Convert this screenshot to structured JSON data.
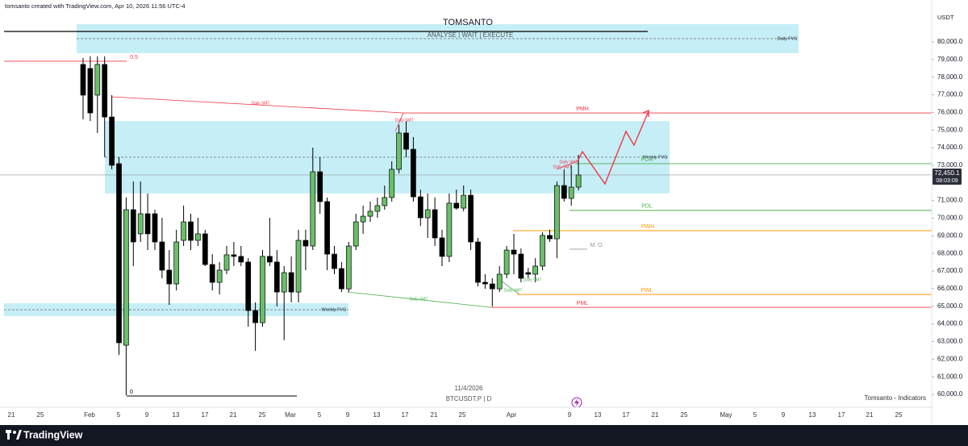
{
  "header": {
    "author_line": "tomsanto created with TradingView.com, Apr 10, 2026 11:56 UTC-4"
  },
  "chart_data": {
    "type": "candlestick",
    "title": "TOMSANTO",
    "subtitle": "ANALYSE | WAIT | EXECUTE",
    "date": "11/4/2026",
    "symbol": "BTCUSDT.P | D",
    "watermark": "Tomsanto - Indicators",
    "currency": "USDT",
    "up_color": "#6abf69",
    "down_color": "#000000",
    "ylim": [
      59270,
      81690
    ],
    "yticks": [
      {
        "value": 60000,
        "label": "60,000.0"
      },
      {
        "value": 61000,
        "label": "61,000.0"
      },
      {
        "value": 62000,
        "label": "62,000.0"
      },
      {
        "value": 63000,
        "label": "63,000.0"
      },
      {
        "value": 64000,
        "label": "64,000.0"
      },
      {
        "value": 65000,
        "label": "65,000.0"
      },
      {
        "value": 66000,
        "label": "66,000.0"
      },
      {
        "value": 67000,
        "label": "67,000.0"
      },
      {
        "value": 68000,
        "label": "68,000.0"
      },
      {
        "value": 69000,
        "label": "69,000.0"
      },
      {
        "value": 70000,
        "label": "70,000.0"
      },
      {
        "value": 71000,
        "label": "71,000.0"
      },
      {
        "value": 73000,
        "label": "73,000.0"
      },
      {
        "value": 74000,
        "label": "74,000.0"
      },
      {
        "value": 75000,
        "label": "75,000.0"
      },
      {
        "value": 76000,
        "label": "76,000.0"
      },
      {
        "value": 77000,
        "label": "77,000.0"
      },
      {
        "value": 78000,
        "label": "78,000.0"
      },
      {
        "value": 79000,
        "label": "79,000.0"
      },
      {
        "value": 80000,
        "label": "80,000.0"
      }
    ],
    "xticks": [
      "21",
      "25",
      "Feb",
      "5",
      "9",
      "13",
      "17",
      "21",
      "25",
      "Mar",
      "5",
      "9",
      "13",
      "17",
      "21",
      "25",
      "Apr",
      "9",
      "13",
      "17",
      "21",
      "25",
      "May",
      "5",
      "9",
      "13",
      "17",
      "21",
      "25"
    ],
    "last_price": {
      "value": 72450.1,
      "label": "72,450.1"
    },
    "countdown": "08:03:09",
    "open": [
      78720,
      78490,
      76980,
      78720,
      75740,
      73090,
      62790,
      70480,
      69110,
      70250,
      70250,
      68650,
      67050,
      66270,
      68740,
      69790,
      68740,
      69110,
      67370,
      66360,
      67050,
      67920,
      67830,
      67510,
      64760,
      64070,
      67830,
      67510,
      65810,
      66910,
      65810,
      68740,
      68420,
      72630,
      70940,
      67960,
      67140,
      65990,
      68420,
      69790,
      70110,
      70390,
      70710,
      71170,
      72770,
      74830,
      73910,
      71210,
      70020,
      70480,
      68880,
      67830,
      70850,
      70570,
      71300,
      68650,
      66360,
      66270,
      65990,
      66820,
      68190,
      67960,
      66910,
      66820,
      67280,
      69020,
      68830,
      71850,
      71120,
      71760
    ],
    "high": [
      79090,
      79180,
      79180,
      79180,
      76980,
      73460,
      71170,
      72080,
      72080,
      71400,
      70480,
      70020,
      68190,
      69340,
      70710,
      70250,
      70020,
      69340,
      67960,
      67510,
      68420,
      68650,
      68420,
      67730,
      65220,
      68190,
      70020,
      68190,
      67280,
      67830,
      69340,
      69340,
      74000,
      73460,
      71170,
      68420,
      67510,
      68650,
      70250,
      70710,
      70940,
      71170,
      71850,
      73230,
      75290,
      75510,
      74600,
      71620,
      71400,
      71170,
      69340,
      71400,
      71620,
      71850,
      71620,
      68880,
      66820,
      66590,
      67280,
      68420,
      69110,
      68280,
      67180,
      67730,
      69200,
      69340,
      72080,
      72770,
      73000,
      73590
    ],
    "low": [
      75610,
      75510,
      74830,
      73460,
      72770,
      62240,
      59950,
      67280,
      68650,
      68190,
      68190,
      66590,
      65080,
      65900,
      68420,
      68190,
      68420,
      67280,
      65900,
      65670,
      66820,
      67280,
      67280,
      63840,
      62470,
      63840,
      67280,
      64990,
      63070,
      65220,
      65220,
      67050,
      68190,
      70250,
      67050,
      66820,
      65810,
      65810,
      68190,
      69110,
      69790,
      70020,
      70480,
      70940,
      72540,
      73460,
      70940,
      69560,
      68880,
      68420,
      67280,
      67510,
      70480,
      70390,
      68190,
      66130,
      65990,
      64990,
      65810,
      66590,
      66820,
      66360,
      66590,
      66360,
      67050,
      68650,
      67730,
      70940,
      70710,
      71580
    ],
    "close": [
      76980,
      75970,
      78720,
      75740,
      73000,
      62930,
      70480,
      68650,
      70250,
      69110,
      68650,
      67050,
      66270,
      68650,
      69790,
      68740,
      69110,
      67370,
      66360,
      67050,
      67920,
      67830,
      67510,
      64760,
      64070,
      67830,
      67510,
      65810,
      66910,
      65810,
      68740,
      68420,
      72630,
      70940,
      67960,
      67140,
      65990,
      68420,
      69790,
      70110,
      70390,
      70710,
      71170,
      72770,
      74830,
      73910,
      71210,
      70020,
      70480,
      68880,
      67830,
      70850,
      70570,
      71300,
      68650,
      66360,
      66270,
      65990,
      66820,
      68190,
      67960,
      66590,
      66820,
      67280,
      69020,
      68830,
      71850,
      71120,
      71760,
      72450.1
    ],
    "levels": [
      {
        "label": "PMH",
        "value": 75970,
        "color": "#f23645"
      },
      {
        "label": "PDH",
        "value": 73090,
        "color": "#4caf50"
      },
      {
        "label": "PDL",
        "value": 70440,
        "color": "#4caf50"
      },
      {
        "label": "PWH",
        "value": 69290,
        "color": "#ff9800"
      },
      {
        "label": "M. O.",
        "value": 68240,
        "color": "#9598a1"
      },
      {
        "label": "PWL",
        "value": 65670,
        "color": "#ff9800"
      },
      {
        "label": "PML",
        "value": 64940,
        "color": "#f23645"
      },
      {
        "label": "0.5",
        "value": 78900,
        "color": "#f23645"
      },
      {
        "label": "0",
        "value": 59910,
        "color": "#000000"
      }
    ],
    "zones": [
      {
        "label": "Daily FVG",
        "top": 81010,
        "bottom": 79360
      },
      {
        "label": "Weekly FVG",
        "top": 75510,
        "bottom": 71400
      },
      {
        "label": "Weekly FVG",
        "top": 65170,
        "bottom": 64440
      }
    ],
    "zone_color": "#c6eef6",
    "annotations": [
      "Daily SMT",
      "Daily SMT",
      "Daily SMT",
      "Daily SMT",
      "Daily SMT",
      "Daily SMT",
      "Daily SMT"
    ]
  },
  "footer": {
    "brand": "TradingView"
  }
}
